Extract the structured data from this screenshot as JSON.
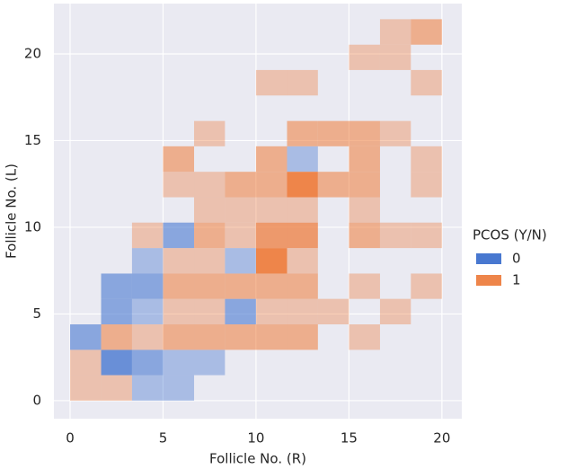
{
  "chart_data": {
    "type": "hist2d",
    "x_label": "Follicle No. (R)",
    "y_label": "Follicle No. (L)",
    "legend_title": "PCOS (Y/N)",
    "legend_position": "right",
    "grid": true,
    "xlim": [
      -0.87,
      21.07
    ],
    "ylim": [
      -1.04,
      22.9
    ],
    "xticks": [
      0,
      5,
      10,
      15,
      20
    ],
    "yticks": [
      0,
      5,
      10,
      15,
      20
    ],
    "xbins": [
      0,
      1.67,
      3.33,
      5,
      6.67,
      8.33,
      10,
      11.67,
      13.33,
      15,
      16.67,
      18.33,
      20
    ],
    "ybins": [
      0,
      1.47,
      2.93,
      4.4,
      5.87,
      7.33,
      8.8,
      10.27,
      11.73,
      13.2,
      14.67,
      16.13,
      17.6,
      19.07,
      20.53,
      22
    ],
    "series": [
      {
        "name": "0",
        "color": "#4878d0",
        "x": [
          3.33,
          5,
          1.67,
          3.33,
          5,
          6.67,
          0,
          1.67,
          3.33,
          8.33,
          1.67,
          3.33,
          3.33,
          8.33,
          5,
          11.67
        ],
        "y": [
          0,
          0,
          1.47,
          1.47,
          1.47,
          1.47,
          2.93,
          4.4,
          4.4,
          4.4,
          5.87,
          5.87,
          7.33,
          7.33,
          8.8,
          13.2
        ],
        "counts": [
          1,
          1,
          3,
          2,
          1,
          1,
          2,
          2,
          1,
          2,
          2,
          2,
          1,
          1,
          2,
          1
        ]
      },
      {
        "name": "1",
        "color": "#ee854a",
        "x": [
          0,
          1.67,
          0,
          1.67,
          3.33,
          5,
          6.67,
          8.33,
          10,
          11.67,
          15,
          5,
          6.67,
          10,
          11.67,
          13.33,
          16.67,
          5,
          6.67,
          8.33,
          10,
          11.67,
          15,
          18.33,
          5,
          6.67,
          10,
          11.67,
          3.33,
          6.67,
          8.33,
          10,
          11.67,
          15,
          16.67,
          18.33,
          6.67,
          8.33,
          10,
          11.67,
          15,
          5,
          6.67,
          8.33,
          10,
          11.67,
          13.33,
          15,
          18.33,
          5,
          10,
          15,
          18.33,
          6.67,
          11.67,
          13.33,
          15,
          16.67,
          10,
          11.67,
          18.33,
          15,
          16.67,
          16.67,
          18.33
        ],
        "y": [
          0,
          0,
          1.47,
          2.93,
          2.93,
          2.93,
          2.93,
          2.93,
          2.93,
          2.93,
          2.93,
          4.4,
          4.4,
          4.4,
          4.4,
          4.4,
          4.4,
          5.87,
          5.87,
          5.87,
          5.87,
          5.87,
          5.87,
          5.87,
          7.33,
          7.33,
          7.33,
          7.33,
          8.8,
          8.8,
          8.8,
          8.8,
          8.8,
          8.8,
          8.8,
          8.8,
          10.27,
          10.27,
          10.27,
          10.27,
          10.27,
          11.73,
          11.73,
          11.73,
          11.73,
          11.73,
          11.73,
          11.73,
          11.73,
          13.2,
          13.2,
          13.2,
          13.2,
          14.67,
          14.67,
          14.67,
          14.67,
          14.67,
          17.6,
          17.6,
          17.6,
          19.07,
          19.07,
          20.53,
          20.53
        ],
        "counts": [
          1,
          1,
          1,
          2,
          1,
          2,
          2,
          2,
          2,
          2,
          1,
          1,
          1,
          1,
          1,
          1,
          1,
          2,
          2,
          2,
          2,
          2,
          1,
          1,
          1,
          1,
          4,
          1,
          1,
          2,
          1,
          3,
          3,
          2,
          1,
          1,
          1,
          1,
          1,
          1,
          1,
          1,
          1,
          2,
          2,
          4,
          2,
          2,
          1,
          2,
          2,
          2,
          1,
          1,
          2,
          2,
          2,
          1,
          1,
          1,
          1,
          1,
          1,
          1,
          2
        ]
      }
    ]
  }
}
